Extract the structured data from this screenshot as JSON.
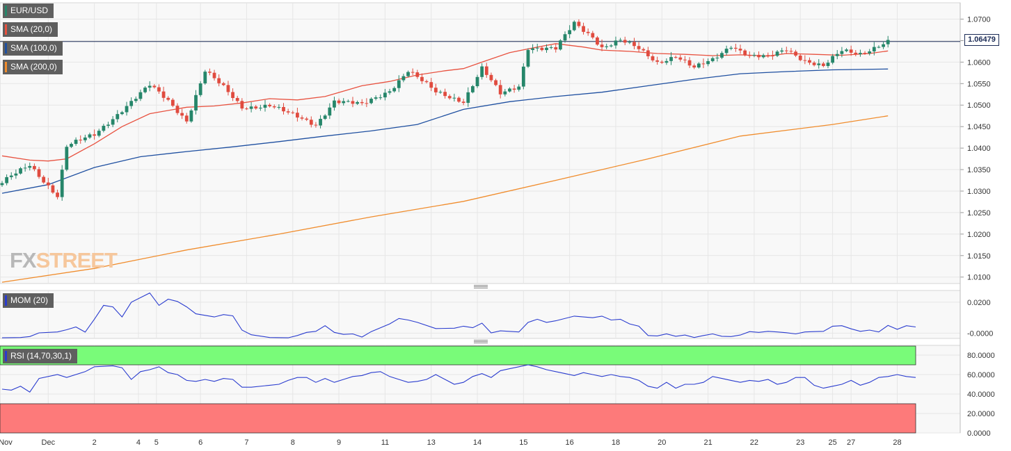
{
  "chart_data": {
    "type": "candlestick",
    "symbol": "EUR/USD",
    "timeframe_note": "4-hour candles",
    "x_tick_labels": [
      "Nov",
      "Dec",
      "2",
      "4",
      "5",
      "6",
      "7",
      "8",
      "9",
      "11",
      "13",
      "14",
      "15",
      "16",
      "18",
      "20",
      "21",
      "22",
      "23",
      "25",
      "27",
      "28"
    ],
    "price_axis": {
      "ylim": [
        1.0085,
        1.0738
      ],
      "ticks": [
        "1.0700",
        "1.0650",
        "1.0600",
        "1.0550",
        "1.0500",
        "1.0450",
        "1.0400",
        "1.0350",
        "1.0300",
        "1.0250",
        "1.0200",
        "1.0150",
        "1.0100"
      ],
      "last_price_label": "1.06479",
      "last_price": 1.06479
    },
    "legend": [
      {
        "label": "EUR/USD",
        "color": "#26866a"
      },
      {
        "label": "SMA (20,0)",
        "color": "#e8513f"
      },
      {
        "label": "SMA (100,0)",
        "color": "#1e4fa0"
      },
      {
        "label": "SMA (200,0)",
        "color": "#f08c2c"
      }
    ],
    "candle_colors": {
      "up": "#26866a",
      "down": "#e04b3f"
    },
    "anchors": [
      [
        0,
        1.032
      ],
      [
        6,
        1.036
      ],
      [
        12,
        1.029
      ],
      [
        14,
        1.0405
      ],
      [
        20,
        1.043
      ],
      [
        26,
        1.049
      ],
      [
        32,
        1.0545
      ],
      [
        36,
        1.051
      ],
      [
        40,
        1.0465
      ],
      [
        44,
        1.058
      ],
      [
        48,
        1.054
      ],
      [
        52,
        1.0495
      ],
      [
        58,
        1.05
      ],
      [
        62,
        1.048
      ],
      [
        68,
        1.0455
      ],
      [
        72,
        1.051
      ],
      [
        78,
        1.05
      ],
      [
        84,
        1.0535
      ],
      [
        88,
        1.058
      ],
      [
        94,
        1.053
      ],
      [
        100,
        1.051
      ],
      [
        104,
        1.0585
      ],
      [
        108,
        1.0525
      ],
      [
        112,
        1.0545
      ],
      [
        114,
        1.0635
      ],
      [
        120,
        1.063
      ],
      [
        124,
        1.069
      ],
      [
        128,
        1.066
      ],
      [
        130,
        1.0635
      ],
      [
        134,
        1.065
      ],
      [
        138,
        1.063
      ],
      [
        142,
        1.06
      ],
      [
        146,
        1.0615
      ],
      [
        150,
        1.0585
      ],
      [
        154,
        1.0605
      ],
      [
        158,
        1.064
      ],
      [
        162,
        1.0615
      ],
      [
        166,
        1.061
      ],
      [
        170,
        1.063
      ],
      [
        174,
        1.0605
      ],
      [
        178,
        1.059
      ],
      [
        182,
        1.0625
      ],
      [
        186,
        1.062
      ],
      [
        190,
        1.064
      ],
      [
        192,
        1.0648
      ]
    ],
    "sma_20": [
      [
        0,
        1.0382
      ],
      [
        6,
        1.0372
      ],
      [
        10,
        1.037
      ],
      [
        14,
        1.0375
      ],
      [
        20,
        1.041
      ],
      [
        26,
        1.045
      ],
      [
        32,
        1.048
      ],
      [
        40,
        1.0495
      ],
      [
        46,
        1.0498
      ],
      [
        52,
        1.0505
      ],
      [
        58,
        1.0515
      ],
      [
        64,
        1.0512
      ],
      [
        70,
        1.052
      ],
      [
        78,
        1.0545
      ],
      [
        84,
        1.0555
      ],
      [
        90,
        1.057
      ],
      [
        96,
        1.058
      ],
      [
        100,
        1.0585
      ],
      [
        104,
        1.06
      ],
      [
        110,
        1.0622
      ],
      [
        116,
        1.0635
      ],
      [
        120,
        1.0643
      ],
      [
        126,
        1.0635
      ],
      [
        130,
        1.0628
      ],
      [
        136,
        1.0625
      ],
      [
        142,
        1.062
      ],
      [
        148,
        1.0618
      ],
      [
        154,
        1.0615
      ],
      [
        160,
        1.0617
      ],
      [
        166,
        1.0614
      ],
      [
        170,
        1.062
      ],
      [
        176,
        1.0618
      ],
      [
        182,
        1.0616
      ],
      [
        188,
        1.062
      ],
      [
        192,
        1.0626
      ]
    ],
    "sma_100": [
      [
        0,
        1.0295
      ],
      [
        10,
        1.0315
      ],
      [
        20,
        1.0355
      ],
      [
        30,
        1.038
      ],
      [
        40,
        1.0392
      ],
      [
        50,
        1.0403
      ],
      [
        60,
        1.0415
      ],
      [
        70,
        1.0428
      ],
      [
        80,
        1.044
      ],
      [
        90,
        1.0455
      ],
      [
        100,
        1.049
      ],
      [
        110,
        1.0508
      ],
      [
        120,
        1.052
      ],
      [
        130,
        1.053
      ],
      [
        140,
        1.0545
      ],
      [
        150,
        1.056
      ],
      [
        160,
        1.0573
      ],
      [
        170,
        1.0578
      ],
      [
        180,
        1.0582
      ],
      [
        192,
        1.0584
      ]
    ],
    "sma_200": [
      [
        0,
        1.0088
      ],
      [
        20,
        1.012
      ],
      [
        40,
        1.0163
      ],
      [
        60,
        1.02
      ],
      [
        80,
        1.024
      ],
      [
        100,
        1.0276
      ],
      [
        120,
        1.0325
      ],
      [
        140,
        1.0375
      ],
      [
        160,
        1.0428
      ],
      [
        180,
        1.0455
      ],
      [
        192,
        1.0475
      ]
    ],
    "momentum": {
      "label": "MOM (20)",
      "ylim": [
        -0.0034,
        0.0276
      ],
      "ticks": [
        "0.0200",
        "-0.0000"
      ],
      "color": "#2a3ccf",
      "points": [
        [
          0,
          -0.003
        ],
        [
          4,
          -0.0028
        ],
        [
          6,
          -0.0022
        ],
        [
          8,
          0.0002
        ],
        [
          12,
          0.0008
        ],
        [
          14,
          0.0022
        ],
        [
          16,
          0.004
        ],
        [
          18,
          0.0007
        ],
        [
          20,
          0.009
        ],
        [
          22,
          0.018
        ],
        [
          24,
          0.017
        ],
        [
          26,
          0.0105
        ],
        [
          28,
          0.02
        ],
        [
          32,
          0.026
        ],
        [
          34,
          0.018
        ],
        [
          36,
          0.022
        ],
        [
          38,
          0.0205
        ],
        [
          40,
          0.017
        ],
        [
          42,
          0.0125
        ],
        [
          44,
          0.0115
        ],
        [
          46,
          0.0105
        ],
        [
          48,
          0.012
        ],
        [
          50,
          0.0112
        ],
        [
          52,
          0.002
        ],
        [
          54,
          -0.001
        ],
        [
          58,
          -0.0028
        ],
        [
          62,
          -0.003
        ],
        [
          64,
          -0.0015
        ],
        [
          66,
          0.0005
        ],
        [
          68,
          0.0012
        ],
        [
          70,
          0.0048
        ],
        [
          72,
          0.0005
        ],
        [
          74,
          -0.0008
        ],
        [
          76,
          -0.0005
        ],
        [
          78,
          -0.0025
        ],
        [
          80,
          0.001
        ],
        [
          84,
          0.006
        ],
        [
          86,
          0.0095
        ],
        [
          88,
          0.0085
        ],
        [
          90,
          0.007
        ],
        [
          94,
          0.003
        ],
        [
          98,
          0.0032
        ],
        [
          100,
          0.0045
        ],
        [
          102,
          0.0035
        ],
        [
          104,
          0.0065
        ],
        [
          106,
          0.0002
        ],
        [
          108,
          0.0015
        ],
        [
          112,
          0.0008
        ],
        [
          114,
          0.007
        ],
        [
          116,
          0.009
        ],
        [
          118,
          0.007
        ],
        [
          120,
          0.008
        ],
        [
          124,
          0.011
        ],
        [
          128,
          0.01
        ],
        [
          130,
          0.011
        ],
        [
          132,
          0.0085
        ],
        [
          134,
          0.009
        ],
        [
          136,
          0.006
        ],
        [
          138,
          0.0045
        ],
        [
          140,
          -0.0015
        ],
        [
          142,
          -0.0018
        ],
        [
          144,
          -0.0005
        ],
        [
          146,
          -0.002
        ],
        [
          148,
          -0.0012
        ],
        [
          150,
          -0.0028
        ],
        [
          152,
          -0.0015
        ],
        [
          154,
          -0.0005
        ],
        [
          156,
          -0.002
        ],
        [
          158,
          -0.0022
        ],
        [
          160,
          -0.0012
        ],
        [
          162,
          0.001
        ],
        [
          164,
          0.0005
        ],
        [
          166,
          0.0012
        ],
        [
          168,
          0.0008
        ],
        [
          170,
          0.0003
        ],
        [
          172,
          -0.0005
        ],
        [
          174,
          0.0008
        ],
        [
          176,
          0.001
        ],
        [
          178,
          0.0012
        ],
        [
          180,
          0.0045
        ],
        [
          182,
          0.0048
        ],
        [
          184,
          0.0028
        ],
        [
          186,
          0.0012
        ],
        [
          188,
          0.002
        ],
        [
          190,
          0.0008
        ],
        [
          192,
          0.005
        ],
        [
          194,
          0.0025
        ],
        [
          196,
          0.0048
        ],
        [
          198,
          0.004
        ]
      ]
    },
    "rsi": {
      "label": "RSI (14,70,30,1)",
      "ylim": [
        0,
        90
      ],
      "ticks": [
        "80.0000",
        "60.0000",
        "40.0000",
        "20.0000",
        "0.0000"
      ],
      "overbought": 70,
      "oversold": 30,
      "color": "#2a3ccf",
      "zone_colors": {
        "upper": "#79fb79",
        "lower": "#fd7a7a"
      },
      "points": [
        [
          0,
          45
        ],
        [
          2,
          44
        ],
        [
          4,
          48
        ],
        [
          6,
          42
        ],
        [
          8,
          56
        ],
        [
          12,
          60
        ],
        [
          14,
          57
        ],
        [
          18,
          63
        ],
        [
          20,
          68
        ],
        [
          24,
          69
        ],
        [
          26,
          67
        ],
        [
          28,
          55
        ],
        [
          30,
          63
        ],
        [
          32,
          65
        ],
        [
          34,
          68
        ],
        [
          36,
          62
        ],
        [
          38,
          60
        ],
        [
          40,
          54
        ],
        [
          42,
          53
        ],
        [
          44,
          55
        ],
        [
          46,
          53
        ],
        [
          48,
          56
        ],
        [
          50,
          55
        ],
        [
          52,
          47
        ],
        [
          54,
          47
        ],
        [
          58,
          49
        ],
        [
          60,
          50
        ],
        [
          62,
          54
        ],
        [
          64,
          57
        ],
        [
          66,
          57
        ],
        [
          68,
          52
        ],
        [
          70,
          56
        ],
        [
          72,
          52
        ],
        [
          74,
          55
        ],
        [
          76,
          58
        ],
        [
          78,
          59
        ],
        [
          80,
          62
        ],
        [
          82,
          63
        ],
        [
          84,
          58
        ],
        [
          86,
          55
        ],
        [
          88,
          52
        ],
        [
          90,
          53
        ],
        [
          92,
          55
        ],
        [
          94,
          60
        ],
        [
          96,
          55
        ],
        [
          98,
          50
        ],
        [
          100,
          52
        ],
        [
          102,
          58
        ],
        [
          104,
          61
        ],
        [
          106,
          57
        ],
        [
          108,
          64
        ],
        [
          110,
          66
        ],
        [
          112,
          68
        ],
        [
          114,
          70
        ],
        [
          116,
          68
        ],
        [
          118,
          65
        ],
        [
          120,
          63
        ],
        [
          122,
          61
        ],
        [
          124,
          59
        ],
        [
          126,
          62
        ],
        [
          128,
          60
        ],
        [
          130,
          58
        ],
        [
          132,
          60
        ],
        [
          134,
          58
        ],
        [
          136,
          57
        ],
        [
          138,
          54
        ],
        [
          140,
          48
        ],
        [
          142,
          46
        ],
        [
          144,
          52
        ],
        [
          146,
          46
        ],
        [
          148,
          50
        ],
        [
          150,
          50
        ],
        [
          152,
          52
        ],
        [
          154,
          58
        ],
        [
          156,
          56
        ],
        [
          158,
          54
        ],
        [
          160,
          52
        ],
        [
          162,
          54
        ],
        [
          164,
          53
        ],
        [
          166,
          55
        ],
        [
          168,
          50
        ],
        [
          170,
          52
        ],
        [
          172,
          57
        ],
        [
          174,
          57
        ],
        [
          176,
          49
        ],
        [
          178,
          46
        ],
        [
          180,
          48
        ],
        [
          182,
          50
        ],
        [
          184,
          54
        ],
        [
          186,
          49
        ],
        [
          188,
          52
        ],
        [
          190,
          57
        ],
        [
          192,
          58
        ],
        [
          194,
          60
        ],
        [
          196,
          58
        ],
        [
          198,
          57
        ]
      ]
    }
  },
  "branding": {
    "logo_fx": "FX",
    "logo_street": "STREET"
  }
}
